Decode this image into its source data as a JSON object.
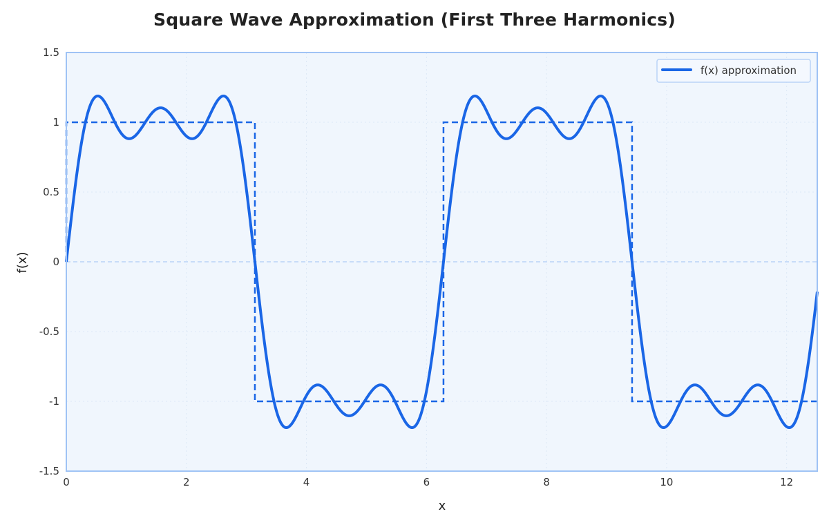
{
  "chart_data": {
    "type": "line",
    "title": "Square Wave Approximation (First Three Harmonics)",
    "xlabel": "x",
    "ylabel": "f(x)",
    "xlim": [
      0,
      12.51
    ],
    "ylim": [
      -1.5,
      1.5
    ],
    "x_ticks": [
      0,
      2,
      4,
      6,
      8,
      10,
      12
    ],
    "y_ticks": [
      -1.5,
      -1,
      -0.5,
      0,
      0.5,
      1,
      1.5
    ],
    "y_tick_labels": [
      "-1.5",
      "-1",
      "-0.5",
      "0",
      "0.5",
      "1",
      "1.5"
    ],
    "grid": true,
    "legend_position": "upper right",
    "series": [
      {
        "name": "f(x) approximation",
        "style": "solid",
        "color": "#1a66e6",
        "formula": "(4/pi)*(sin(x) + sin(3x)/3 + sin(5x)/5)",
        "sample_points": [
          {
            "x": 0,
            "y": 0
          },
          {
            "x": 0.52,
            "y": 1.18
          },
          {
            "x": 1.05,
            "y": 0.88
          },
          {
            "x": 1.57,
            "y": 1.1
          },
          {
            "x": 2.09,
            "y": 0.88
          },
          {
            "x": 2.62,
            "y": 1.18
          },
          {
            "x": 3.14,
            "y": 0
          },
          {
            "x": 3.67,
            "y": -1.18
          },
          {
            "x": 4.19,
            "y": -0.88
          },
          {
            "x": 4.71,
            "y": -1.1
          },
          {
            "x": 5.24,
            "y": -0.88
          },
          {
            "x": 5.76,
            "y": -1.18
          },
          {
            "x": 6.28,
            "y": 0
          },
          {
            "x": 6.81,
            "y": 1.18
          },
          {
            "x": 7.33,
            "y": 0.88
          },
          {
            "x": 7.85,
            "y": 1.1
          },
          {
            "x": 8.38,
            "y": 0.88
          },
          {
            "x": 8.9,
            "y": 1.18
          },
          {
            "x": 9.42,
            "y": 0
          },
          {
            "x": 9.95,
            "y": -1.18
          },
          {
            "x": 10.47,
            "y": -0.88
          },
          {
            "x": 11.0,
            "y": -1.1
          },
          {
            "x": 11.52,
            "y": -0.88
          },
          {
            "x": 12.04,
            "y": -1.18
          },
          {
            "x": 12.51,
            "y": -0.25
          }
        ]
      },
      {
        "name": "square wave",
        "style": "dashed",
        "color": "#1a66e6",
        "in_legend": false,
        "steps": [
          {
            "x_start": 0,
            "x_end": 3.1416,
            "y": 1
          },
          {
            "x_start": 3.1416,
            "x_end": 6.2832,
            "y": -1
          },
          {
            "x_start": 6.2832,
            "x_end": 9.4248,
            "y": 1
          },
          {
            "x_start": 9.4248,
            "x_end": 12.51,
            "y": -1
          }
        ]
      }
    ],
    "reference_lines": [
      {
        "axis": "y",
        "value": 0,
        "style": "dashed",
        "color": "#b9d3f7"
      }
    ]
  },
  "legend": {
    "label": "f(x) approximation"
  },
  "colors": {
    "line": "#1a66e6",
    "plot_background": "#f0f6fd",
    "plot_border": "#9fc3f5",
    "grid": "#dde8f6",
    "zero_line": "#b9d3f7"
  }
}
